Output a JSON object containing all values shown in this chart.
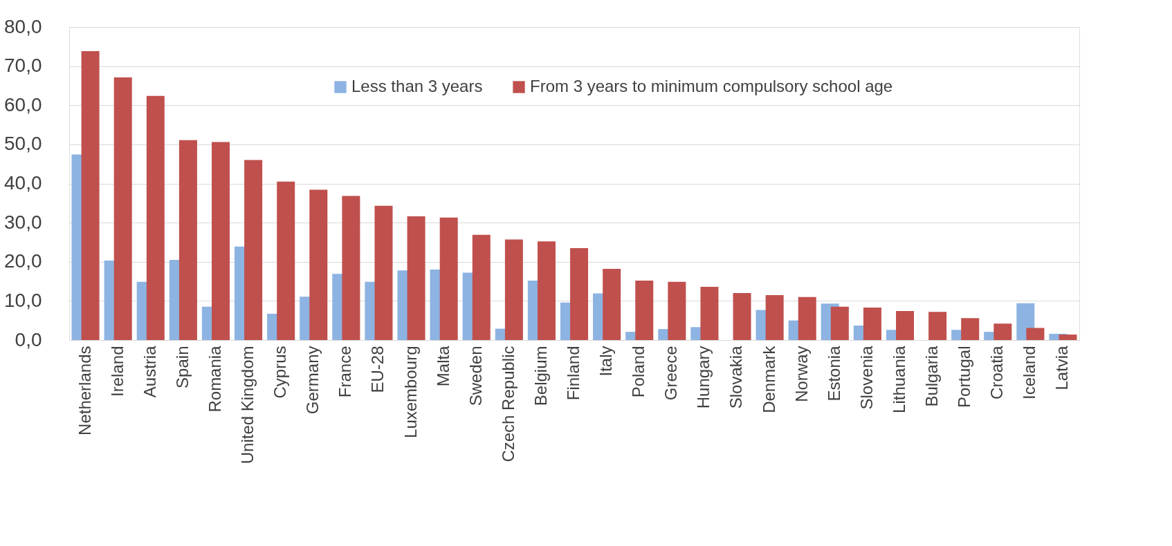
{
  "chart_data": {
    "type": "bar",
    "categories": [
      "Netherlands",
      "Ireland",
      "Austria",
      "Spain",
      "Romania",
      "United Kingdom",
      "Cyprus",
      "Germany",
      "France",
      "EU-28",
      "Luxembourg",
      "Malta",
      "Sweden",
      "Czech Republic",
      "Belgium",
      "Finland",
      "Italy",
      "Poland",
      "Greece",
      "Hungary",
      "Slovakia",
      "Denmark",
      "Norway",
      "Estonia",
      "Slovenia",
      "Lithuania",
      "Bulgaria",
      "Portugal",
      "Croatia",
      "Iceland",
      "Latvia"
    ],
    "series": [
      {
        "name": "Less than 3 years",
        "color": "#8db3e2",
        "values": [
          47.4,
          20.3,
          14.9,
          20.5,
          8.5,
          23.9,
          6.7,
          11.1,
          16.9,
          14.9,
          17.8,
          18.0,
          17.2,
          2.9,
          15.2,
          9.6,
          11.9,
          2.1,
          2.8,
          3.3,
          null,
          7.7,
          5.0,
          9.3,
          3.7,
          2.6,
          null,
          2.6,
          2.1,
          9.4,
          1.6
        ]
      },
      {
        "name": "From 3 years to minimum compulsory school age",
        "color": "#c0504d",
        "values": [
          73.8,
          67.1,
          62.4,
          51.1,
          50.6,
          46.0,
          40.5,
          38.4,
          36.8,
          34.3,
          31.6,
          31.3,
          26.9,
          25.7,
          25.2,
          23.5,
          18.2,
          15.2,
          14.9,
          13.6,
          12.0,
          11.5,
          11.0,
          8.5,
          8.3,
          7.4,
          7.2,
          5.6,
          4.2,
          3.1,
          1.4
        ]
      }
    ],
    "ylim": [
      0,
      80
    ],
    "yticks": [
      {
        "value": 0,
        "label": "0,0"
      },
      {
        "value": 10,
        "label": "10,0"
      },
      {
        "value": 20,
        "label": "20,0"
      },
      {
        "value": 30,
        "label": "30,0"
      },
      {
        "value": 40,
        "label": "40,0"
      },
      {
        "value": 50,
        "label": "50,0"
      },
      {
        "value": 60,
        "label": "60,0"
      },
      {
        "value": 70,
        "label": "70,0"
      },
      {
        "value": 80,
        "label": "80,0"
      }
    ],
    "grid": "y",
    "legend": "top"
  }
}
